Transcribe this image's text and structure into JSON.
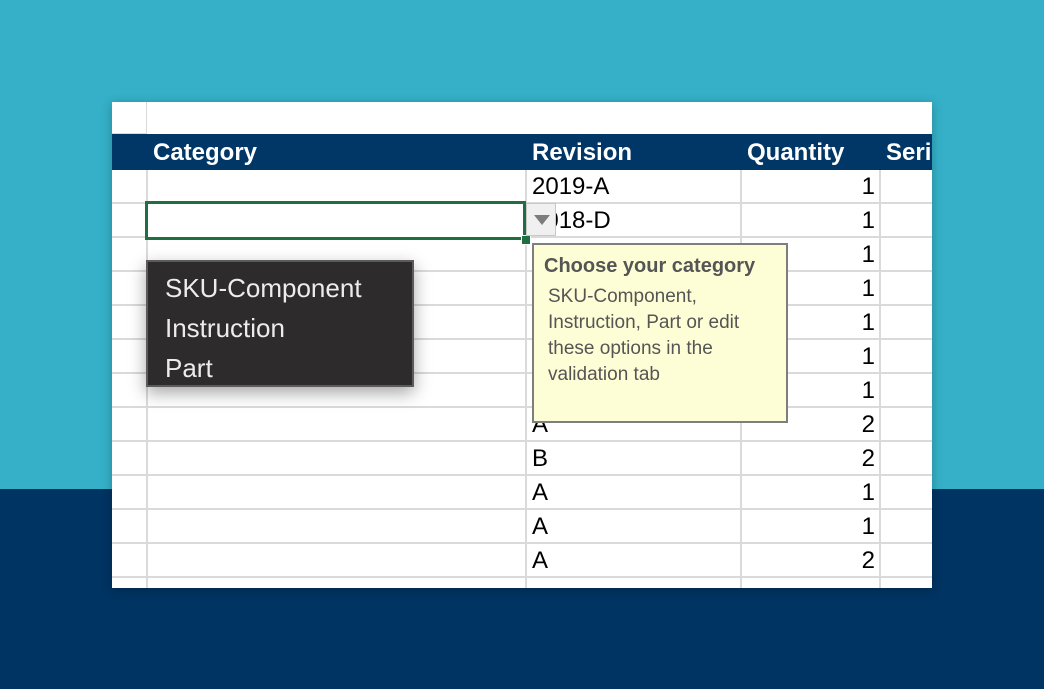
{
  "columns": {
    "category": "Category",
    "revision": "Revision",
    "quantity": "Quantity",
    "serial": "Seri"
  },
  "rows": [
    {
      "revision": "2019-A",
      "quantity": "1"
    },
    {
      "revision": "2018-D",
      "quantity": "1"
    },
    {
      "revision": "",
      "quantity": "1"
    },
    {
      "revision": "",
      "quantity": "1"
    },
    {
      "revision": "",
      "quantity": "1"
    },
    {
      "revision": "",
      "quantity": "1"
    },
    {
      "revision": "",
      "quantity": "1"
    },
    {
      "revision": "A",
      "quantity": "2"
    },
    {
      "revision": "B",
      "quantity": "2"
    },
    {
      "revision": "A",
      "quantity": "1"
    },
    {
      "revision": "A",
      "quantity": "1"
    },
    {
      "revision": "A",
      "quantity": "2"
    }
  ],
  "dropdown": {
    "options": [
      "SKU-Component",
      "Instruction",
      "Part"
    ]
  },
  "tooltip": {
    "title": "Choose your category",
    "body": "SKU-Component, Instruction, Part or edit these options in the validation tab"
  },
  "colors": {
    "background_top": "#35b0c8",
    "background_bottom": "#003463",
    "header": "#013766",
    "selection": "#1f6f43",
    "tooltip_bg": "#fefed6",
    "menu_bg": "#2d2b2c"
  },
  "icons": {
    "dropdown_arrow": "triangle-down-icon"
  }
}
